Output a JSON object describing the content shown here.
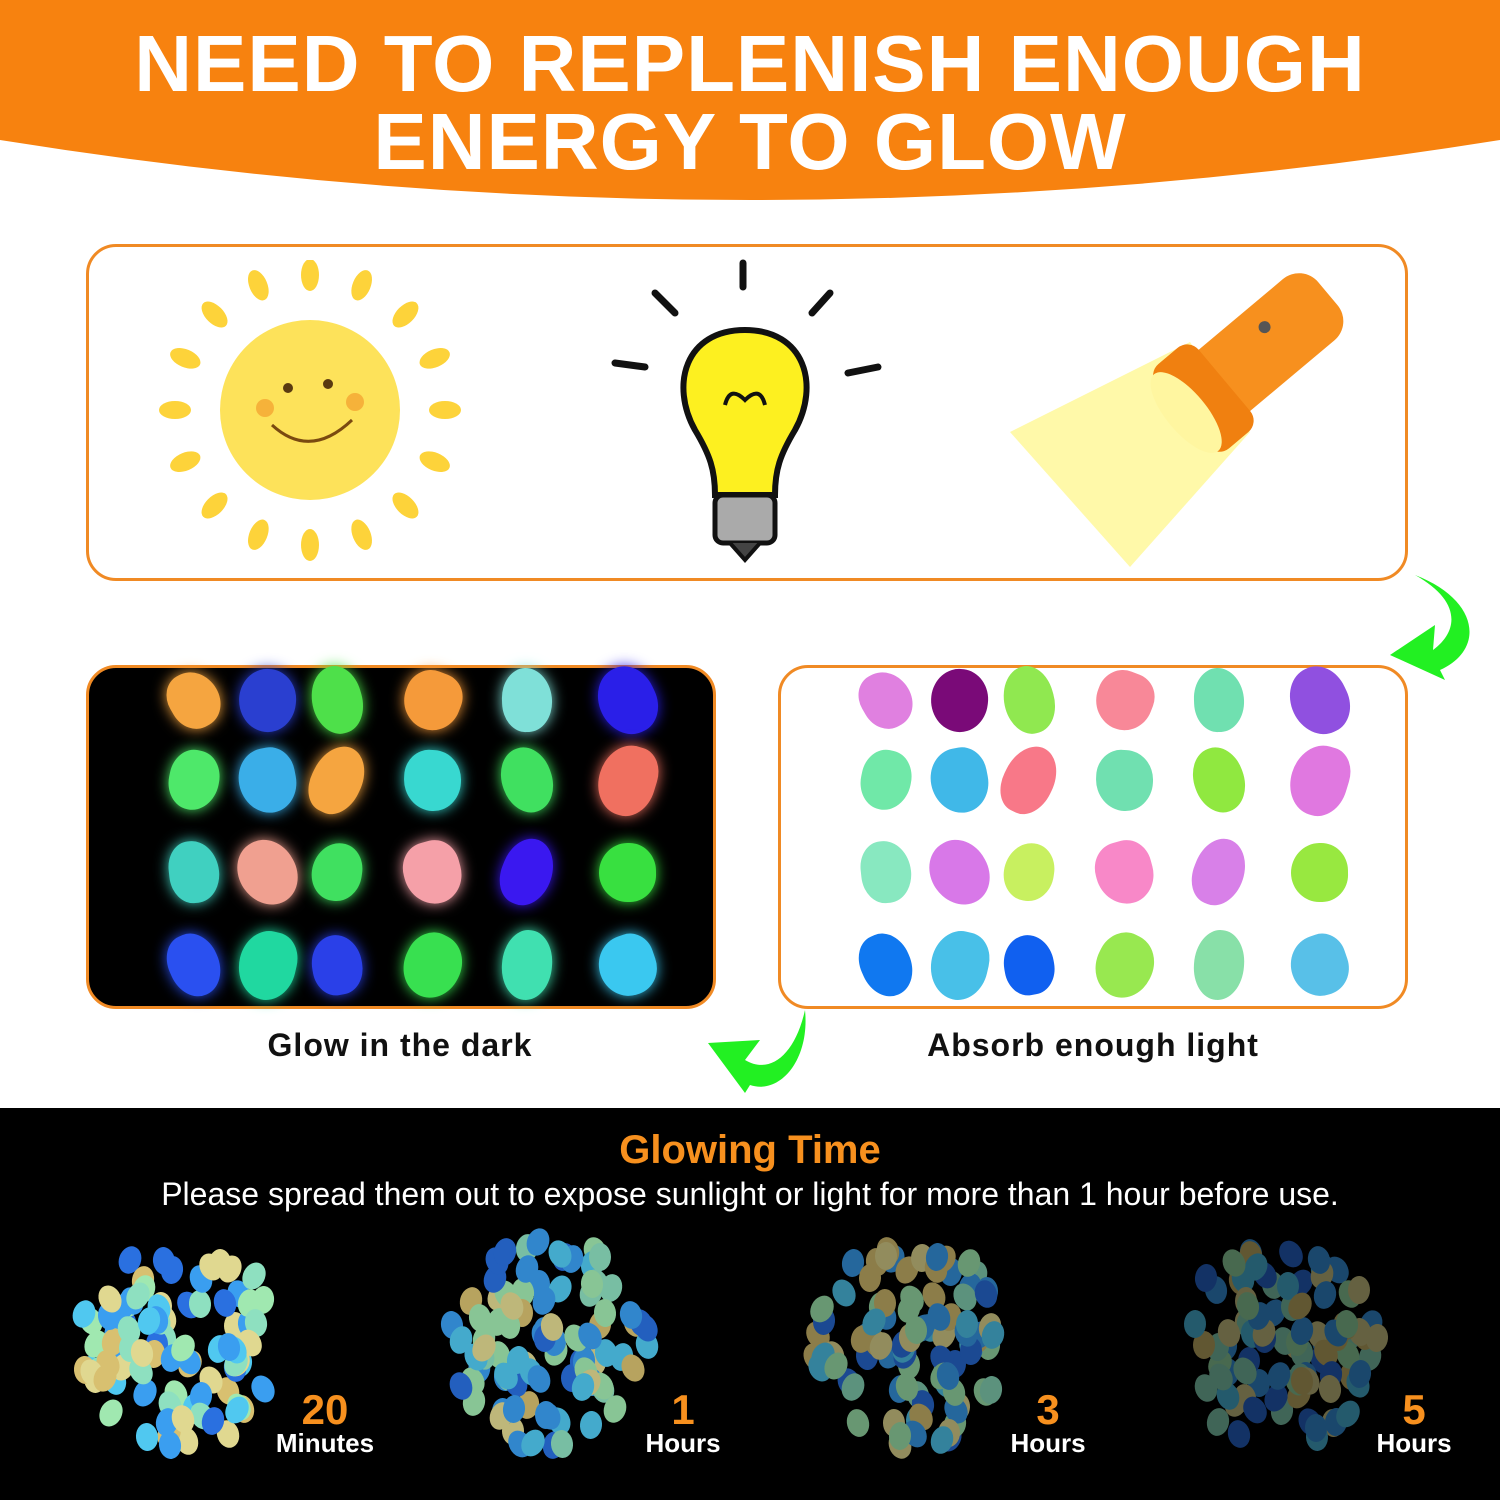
{
  "header": {
    "line1": "NEED TO REPLENISH ENOUGH",
    "line2": "ENERGY TO GLOW",
    "color": "#f7820f"
  },
  "light_sources": [
    {
      "icon": "sun-icon"
    },
    {
      "icon": "light-bulb-icon"
    },
    {
      "icon": "flashlight-icon"
    }
  ],
  "panels": {
    "glow_label": "Glow in the dark",
    "absorb_label": "Absorb enough light",
    "glow_colors": [
      "#f5a540",
      "#2a3fd0",
      "#4ee04a",
      "#f59a3a",
      "#7fe0d8",
      "#2a1fe8",
      "#4ee86a",
      "#3aaee8",
      "#f5a540",
      "#38d8d0",
      "#40e060",
      "#f07060",
      "#40d0c0",
      "#f0a090",
      "#40e060",
      "#f5a0a8",
      "#3a18f0",
      "#38e040",
      "#2a50f0",
      "#20d8a0",
      "#2a40e8",
      "#38e050",
      "#40e0b0",
      "#3ac8f0"
    ],
    "absorb_colors": [
      "#e080e0",
      "#7a0a78",
      "#90e850",
      "#f88898",
      "#70e0b0",
      "#9050e0",
      "#70e8a8",
      "#40b8e8",
      "#f87888",
      "#70e0b0",
      "#90e840",
      "#e078e0",
      "#88e8c0",
      "#d878e8",
      "#c8f060",
      "#f888c8",
      "#d880e8",
      "#98e840",
      "#1078f0",
      "#48c0e8",
      "#1060f0",
      "#98e850",
      "#88e0a8",
      "#58c0e8"
    ]
  },
  "glowing_time": {
    "title": "Glowing Time",
    "subtitle": "Please spread them out to expose sunlight or light for more than 1 hour before use.",
    "stages": [
      {
        "value": "20",
        "unit": "Minutes",
        "brightness": 1.0
      },
      {
        "value": "1",
        "unit": "Hours",
        "brightness": 0.85
      },
      {
        "value": "3",
        "unit": "Hours",
        "brightness": 0.65
      },
      {
        "value": "5",
        "unit": "Hours",
        "brightness": 0.45
      }
    ]
  },
  "colors": {
    "accent": "#f08a24",
    "arrow": "#22f022",
    "number": "#f7901e"
  }
}
